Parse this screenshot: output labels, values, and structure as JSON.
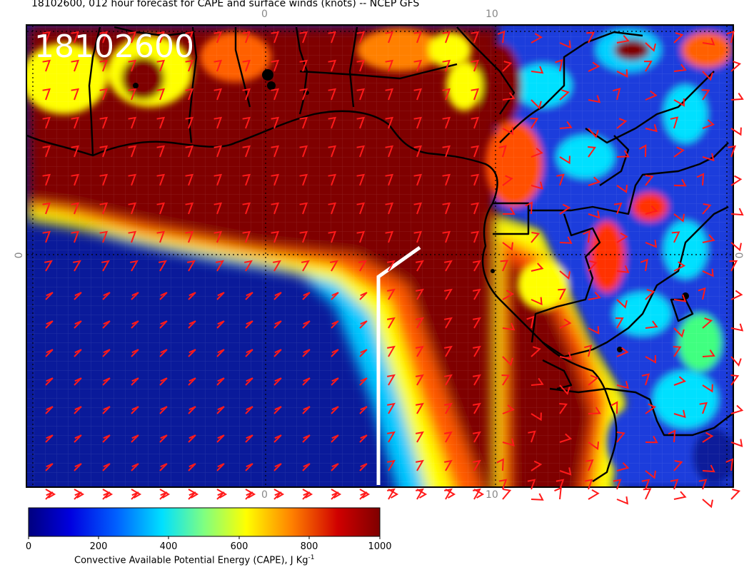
{
  "title": "18102600, 012 hour forecast for CAPE and surface winds (knots) -- NCEP GFS",
  "stamp": "18102600",
  "lon_labels": [
    "0",
    "10",
    "0",
    "10"
  ],
  "lat_labels": [
    "0",
    "0"
  ],
  "colorbar": {
    "label": "Convective Available Potential Energy (CAPE), J Kg",
    "label_superscript": "-1",
    "ticks": [
      "0",
      "200",
      "400",
      "600",
      "800",
      "1000"
    ],
    "colors": [
      "#00007f",
      "#0000ff",
      "#00ffff",
      "#ffff00",
      "#ff7f00",
      "#7f0000"
    ]
  },
  "colors": {
    "barb": "#ff1a1a",
    "coast": "#000000",
    "cross_section": "#ffffff"
  }
}
